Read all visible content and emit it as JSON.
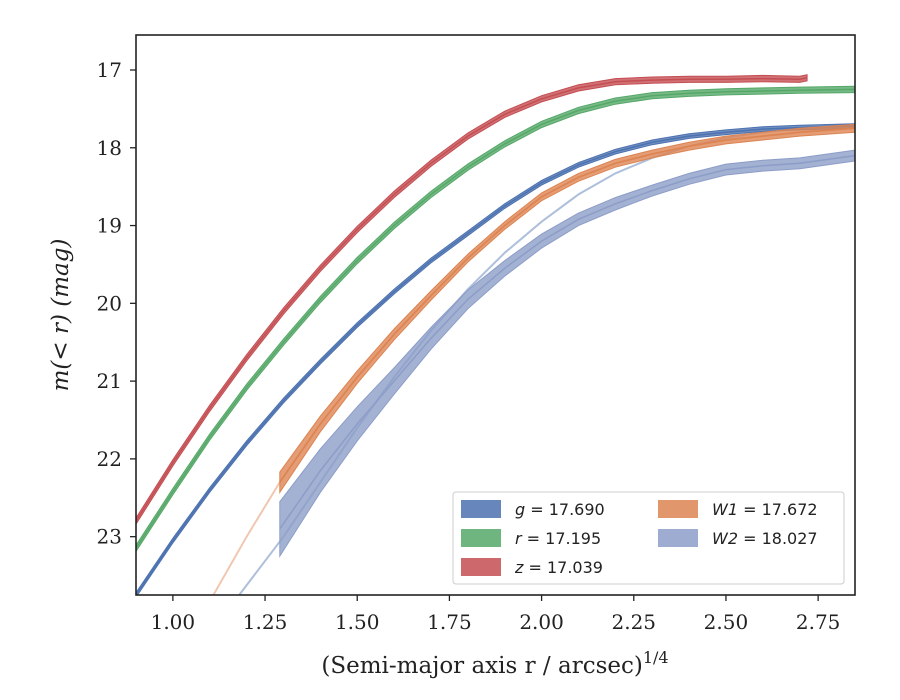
{
  "chart_data": {
    "type": "line",
    "title": "",
    "xlabel": "(Semi-major axis r / arcsec)",
    "xlabel_superscript": "1/4",
    "ylabel": "m(< r) (mag)",
    "xlim": [
      0.9,
      2.85
    ],
    "ylim": [
      23.75,
      16.55
    ],
    "y_inverted": true,
    "grid": false,
    "legend_position": "lower-right",
    "x_ticks": [
      "1.00",
      "1.25",
      "1.50",
      "1.75",
      "2.00",
      "2.25",
      "2.50",
      "2.75"
    ],
    "y_ticks": [
      "17",
      "18",
      "19",
      "20",
      "21",
      "22",
      "23"
    ],
    "series": [
      {
        "name": "g = 17.690",
        "legend_var": "g",
        "legend_value": "= 17.690",
        "color": "#4c72b0",
        "x": [
          0.9,
          1.0,
          1.1,
          1.2,
          1.3,
          1.4,
          1.5,
          1.6,
          1.7,
          1.8,
          1.9,
          2.0,
          2.1,
          2.2,
          2.3,
          2.4,
          2.5,
          2.6,
          2.7,
          2.85
        ],
        "y": [
          23.75,
          23.05,
          22.4,
          21.8,
          21.25,
          20.75,
          20.28,
          19.85,
          19.45,
          19.1,
          18.75,
          18.45,
          18.22,
          18.05,
          17.93,
          17.85,
          17.8,
          17.76,
          17.74,
          17.72
        ],
        "band_halfwidth": 0.03
      },
      {
        "name": "r = 17.195",
        "legend_var": "r",
        "legend_value": "= 17.195",
        "color": "#55a868",
        "x": [
          0.9,
          1.0,
          1.1,
          1.2,
          1.3,
          1.4,
          1.5,
          1.6,
          1.7,
          1.8,
          1.9,
          2.0,
          2.1,
          2.2,
          2.3,
          2.4,
          2.5,
          2.6,
          2.7,
          2.85
        ],
        "y": [
          23.15,
          22.42,
          21.72,
          21.08,
          20.5,
          19.95,
          19.45,
          19.0,
          18.6,
          18.25,
          17.95,
          17.7,
          17.52,
          17.4,
          17.33,
          17.3,
          17.28,
          17.27,
          17.26,
          17.25
        ],
        "band_halfwidth": 0.04
      },
      {
        "name": "z = 17.039",
        "legend_var": "z",
        "legend_value": "= 17.039",
        "color": "#c44e52",
        "x": [
          0.9,
          1.0,
          1.1,
          1.2,
          1.3,
          1.4,
          1.5,
          1.6,
          1.7,
          1.8,
          1.9,
          2.0,
          2.1,
          2.2,
          2.3,
          2.4,
          2.5,
          2.6,
          2.7,
          2.72
        ],
        "y": [
          22.8,
          22.05,
          21.35,
          20.7,
          20.1,
          19.55,
          19.05,
          18.6,
          18.2,
          17.85,
          17.57,
          17.37,
          17.23,
          17.15,
          17.13,
          17.12,
          17.12,
          17.11,
          17.12,
          17.1
        ],
        "band_halfwidth": 0.04
      },
      {
        "name": "W1 = 17.672",
        "legend_var": "W1",
        "legend_value": "= 17.672",
        "color": "#dd8452",
        "x": [
          1.29,
          1.4,
          1.5,
          1.6,
          1.7,
          1.8,
          1.9,
          2.0,
          2.1,
          2.2,
          2.3,
          2.4,
          2.5,
          2.6,
          2.7,
          2.85
        ],
        "y": [
          22.3,
          21.55,
          20.95,
          20.4,
          19.9,
          19.42,
          19.0,
          18.63,
          18.38,
          18.2,
          18.08,
          17.98,
          17.9,
          17.85,
          17.8,
          17.75
        ],
        "band_halfwidth": [
          0.13,
          0.1,
          0.08,
          0.07,
          0.06,
          0.05,
          0.05,
          0.05,
          0.05,
          0.05,
          0.05,
          0.05,
          0.05,
          0.05,
          0.05,
          0.05
        ]
      },
      {
        "name": "W2 = 18.027",
        "legend_var": "W2",
        "legend_value": "= 18.027",
        "color": "#8c9dc8",
        "x": [
          1.29,
          1.4,
          1.5,
          1.6,
          1.7,
          1.8,
          1.9,
          2.0,
          2.1,
          2.2,
          2.3,
          2.4,
          2.5,
          2.6,
          2.7,
          2.85
        ],
        "y": [
          22.9,
          22.15,
          21.55,
          21.0,
          20.45,
          19.95,
          19.55,
          19.2,
          18.92,
          18.72,
          18.55,
          18.4,
          18.28,
          18.23,
          18.2,
          18.1
        ],
        "band_halfwidth": [
          0.35,
          0.28,
          0.22,
          0.17,
          0.14,
          0.12,
          0.1,
          0.09,
          0.08,
          0.08,
          0.07,
          0.07,
          0.07,
          0.07,
          0.07,
          0.07
        ]
      }
    ],
    "model_curves": [
      {
        "color": "#4c72b0",
        "x": [
          1.18,
          1.3,
          1.4,
          1.5,
          1.6,
          1.7,
          1.8,
          1.9,
          2.0,
          2.1,
          2.2,
          2.3,
          2.4,
          2.5,
          2.6,
          2.7,
          2.85
        ],
        "y": [
          23.75,
          23.0,
          22.3,
          21.6,
          20.95,
          20.35,
          19.82,
          19.35,
          18.95,
          18.6,
          18.33,
          18.13,
          17.98,
          17.87,
          17.8,
          17.75,
          17.7
        ]
      },
      {
        "color": "#dd8452",
        "x": [
          1.11,
          1.2,
          1.29,
          1.4,
          1.5,
          1.6,
          1.7,
          1.8,
          1.9,
          2.0,
          2.1,
          2.2,
          2.3,
          2.4,
          2.5,
          2.6,
          2.7,
          2.85
        ],
        "y": [
          23.75,
          23.0,
          22.3,
          21.55,
          20.95,
          20.4,
          19.9,
          19.42,
          19.0,
          18.63,
          18.38,
          18.2,
          18.08,
          17.98,
          17.9,
          17.85,
          17.8,
          17.75
        ]
      }
    ]
  }
}
